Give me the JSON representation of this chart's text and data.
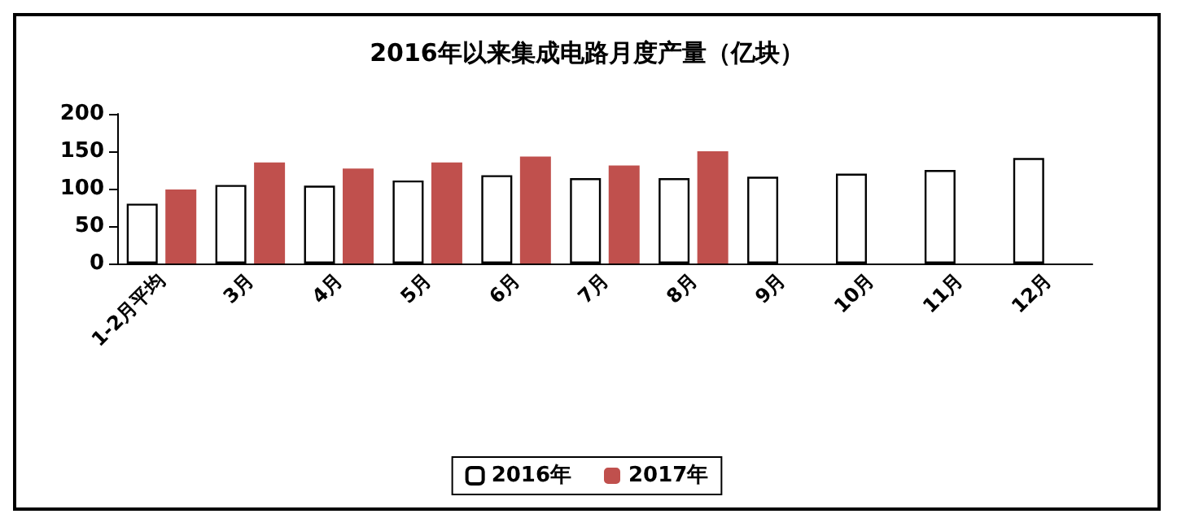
{
  "chart_data": {
    "type": "bar",
    "title": "2016年以来集成电路月度产量（亿块）",
    "categories": [
      "1-2月平均",
      "3月",
      "4月",
      "5月",
      "6月",
      "7月",
      "8月",
      "9月",
      "10月",
      "11月",
      "12月"
    ],
    "series": [
      {
        "name": "2016年",
        "color": "#ffffff",
        "values": [
          80,
          105,
          104,
          111,
          118,
          114,
          114,
          116,
          120,
          125,
          141
        ]
      },
      {
        "name": "2017年",
        "color": "#c0504d",
        "values": [
          99,
          135,
          127,
          135,
          143,
          131,
          150,
          null,
          null,
          null,
          null
        ]
      }
    ],
    "ylim": [
      0,
      200
    ],
    "yticks": [
      0,
      50,
      100,
      150,
      200
    ],
    "grid": false,
    "legend": "bottom"
  }
}
